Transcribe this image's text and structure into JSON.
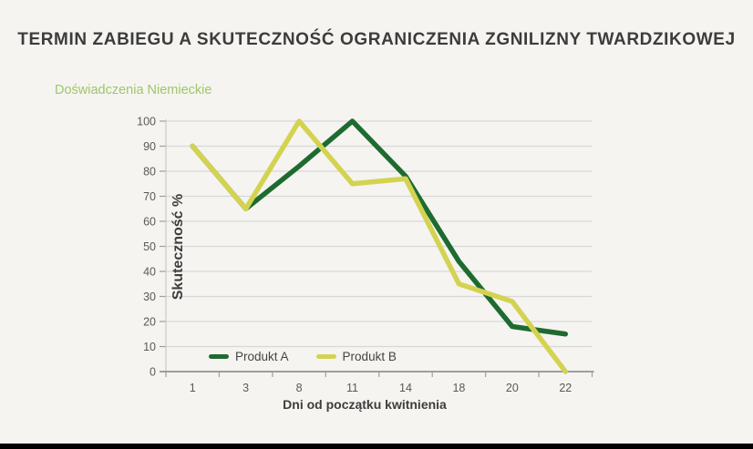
{
  "chart_data": {
    "type": "line",
    "title": "TERMIN ZABIEGU A SKUTECZNOŚĆ OGRANICZENIA ZGNILIZNY TWARDZIKOWEJ",
    "subtitle": "Doświadczenia Niemieckie",
    "xlabel": "Dni od początku kwitnienia",
    "ylabel": "Skuteczność %",
    "categories": [
      "1",
      "3",
      "8",
      "11",
      "14",
      "18",
      "20",
      "22"
    ],
    "series": [
      {
        "name": "Produkt A",
        "color": "#1e6b2f",
        "values": [
          90,
          65,
          82,
          100,
          78,
          44,
          18,
          15
        ]
      },
      {
        "name": "Produkt B",
        "color": "#d4d351",
        "values": [
          90,
          65,
          100,
          75,
          77,
          35,
          28,
          0
        ]
      }
    ],
    "ylim": [
      0,
      100
    ],
    "ytick_step": 10,
    "grid": true,
    "legend_position": "bottom-left-inside"
  },
  "colors": {
    "title_text": "#3c3c3c",
    "subtitle_text": "#9fc768",
    "axis_text": "#595959",
    "axis_title_text": "#3d3d3d",
    "gridline": "#d8d8d8",
    "axis_line": "#9e9e9e",
    "y_axis_line": "#c9c9c9",
    "background": "#f5f4f1",
    "bottom_bar": "#000000"
  }
}
